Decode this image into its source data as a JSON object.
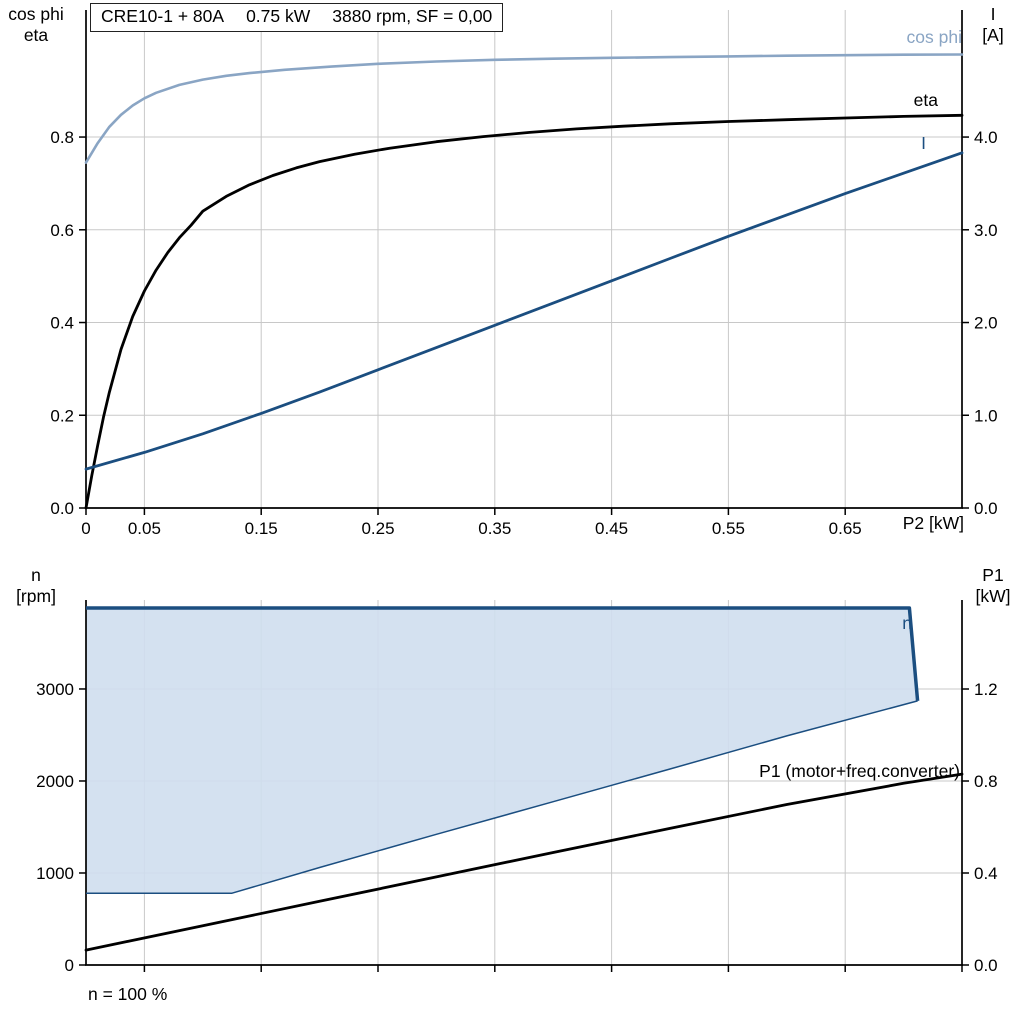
{
  "colors": {
    "light_blue": "#8aa5c4",
    "dark_blue": "#1b4e80",
    "black": "#000000",
    "area_fill": "#cfdeee",
    "grid": "#c8c8c8",
    "axis": "#000000"
  },
  "chart_data": [
    {
      "type": "line",
      "title": "CRE10-1 + 80A 0.75 kW 3880 rpm, SF = 0,00",
      "title_parts": [
        "CRE10-1 + 80A",
        "0.75 kW",
        "3880 rpm, SF = 0,00"
      ],
      "xlabel": "P2 [kW]",
      "xlim": [
        0,
        0.75
      ],
      "x_ticks": {
        "values": [
          0,
          0.05,
          0.15,
          0.25,
          0.35,
          0.45,
          0.55,
          0.65
        ],
        "labels": [
          "0",
          "0.05",
          "0.15",
          "0.25",
          "0.35",
          "0.45",
          "0.55",
          "0.65"
        ]
      },
      "x_gridlines": [
        0.05,
        0.15,
        0.25,
        0.35,
        0.45,
        0.55,
        0.65,
        0.75
      ],
      "left_axis": {
        "title_lines": [
          "cos phi",
          "eta"
        ],
        "range": [
          0,
          1.074
        ],
        "ticks": [
          0,
          0.2,
          0.4,
          0.6,
          0.8
        ],
        "tick_labels": [
          "0.0",
          "0.2",
          "0.4",
          "0.6",
          "0.8"
        ]
      },
      "right_axis": {
        "title_lines": [
          "I",
          "[A]"
        ],
        "range": [
          0,
          5.37
        ],
        "ticks": [
          0,
          1,
          2,
          3,
          4
        ],
        "tick_labels": [
          "0.0",
          "1.0",
          "2.0",
          "3.0",
          "4.0"
        ]
      },
      "series": [
        {
          "name": "cos phi",
          "axis": "left",
          "color_key": "light_blue",
          "width": 2.6,
          "points": [
            [
              0,
              0.745
            ],
            [
              0.01,
              0.787
            ],
            [
              0.02,
              0.822
            ],
            [
              0.03,
              0.848
            ],
            [
              0.04,
              0.868
            ],
            [
              0.05,
              0.8835
            ],
            [
              0.06,
              0.8955
            ],
            [
              0.08,
              0.9125
            ],
            [
              0.1,
              0.924
            ],
            [
              0.12,
              0.932
            ],
            [
              0.14,
              0.938
            ],
            [
              0.17,
              0.945
            ],
            [
              0.21,
              0.952
            ],
            [
              0.25,
              0.958
            ],
            [
              0.3,
              0.963
            ],
            [
              0.35,
              0.9665
            ],
            [
              0.4,
              0.969
            ],
            [
              0.45,
              0.971
            ],
            [
              0.5,
              0.9725
            ],
            [
              0.55,
              0.974
            ],
            [
              0.6,
              0.9755
            ],
            [
              0.65,
              0.9765
            ],
            [
              0.7,
              0.9775
            ],
            [
              0.75,
              0.978
            ]
          ]
        },
        {
          "name": "eta",
          "axis": "left",
          "color_key": "black",
          "width": 2.8,
          "points": [
            [
              0,
              0
            ],
            [
              0.005,
              0.07
            ],
            [
              0.01,
              0.135
            ],
            [
              0.015,
              0.196
            ],
            [
              0.02,
              0.25
            ],
            [
              0.03,
              0.342
            ],
            [
              0.04,
              0.413
            ],
            [
              0.05,
              0.468
            ],
            [
              0.06,
              0.513
            ],
            [
              0.07,
              0.551
            ],
            [
              0.08,
              0.583
            ],
            [
              0.09,
              0.61
            ],
            [
              0.1,
              0.64
            ],
            [
              0.12,
              0.672
            ],
            [
              0.14,
              0.697
            ],
            [
              0.16,
              0.717
            ],
            [
              0.18,
              0.7335
            ],
            [
              0.2,
              0.747
            ],
            [
              0.23,
              0.763
            ],
            [
              0.26,
              0.776
            ],
            [
              0.3,
              0.79
            ],
            [
              0.34,
              0.801
            ],
            [
              0.38,
              0.81
            ],
            [
              0.42,
              0.8175
            ],
            [
              0.46,
              0.8235
            ],
            [
              0.5,
              0.8285
            ],
            [
              0.55,
              0.8335
            ],
            [
              0.6,
              0.8375
            ],
            [
              0.65,
              0.841
            ],
            [
              0.7,
              0.8445
            ],
            [
              0.75,
              0.847
            ]
          ]
        },
        {
          "name": "I",
          "axis": "right",
          "color_key": "dark_blue",
          "width": 2.8,
          "points": [
            [
              0,
              0.42
            ],
            [
              0.05,
              0.6
            ],
            [
              0.1,
              0.8
            ],
            [
              0.15,
              1.02
            ],
            [
              0.2,
              1.25
            ],
            [
              0.25,
              1.49
            ],
            [
              0.3,
              1.73
            ],
            [
              0.35,
              1.97
            ],
            [
              0.4,
              2.21
            ],
            [
              0.45,
              2.45
            ],
            [
              0.5,
              2.69
            ],
            [
              0.55,
              2.93
            ],
            [
              0.6,
              3.16
            ],
            [
              0.65,
              3.39
            ],
            [
              0.7,
              3.61
            ],
            [
              0.75,
              3.83
            ]
          ]
        }
      ]
    },
    {
      "type": "line",
      "footnote": "n = 100 %",
      "xlim": [
        0,
        0.75
      ],
      "x_ticks": {
        "values": [
          0.05,
          0.15,
          0.25,
          0.35,
          0.45,
          0.55,
          0.65,
          0.75
        ],
        "labels": []
      },
      "x_gridlines": [
        0.05,
        0.15,
        0.25,
        0.35,
        0.45,
        0.55,
        0.65,
        0.75
      ],
      "left_axis": {
        "title_lines": [
          "n",
          "[rpm]"
        ],
        "range": [
          0,
          3967
        ],
        "ticks": [
          0,
          1000,
          2000,
          3000
        ],
        "tick_labels": [
          "0",
          "1000",
          "2000",
          "3000"
        ]
      },
      "right_axis": {
        "title_lines": [
          "P1",
          "[kW]"
        ],
        "range": [
          0,
          1.587
        ],
        "ticks": [
          0,
          0.4,
          0.8,
          1.2
        ],
        "tick_labels": [
          "0.0",
          "0.4",
          "0.8",
          "1.2"
        ]
      },
      "series": [
        {
          "name": "n",
          "type": "area",
          "axis": "left",
          "color_key": "dark_blue",
          "fill_key": "area_fill",
          "upper": [
            [
              0,
              3880
            ],
            [
              0.705,
              3880
            ],
            [
              0.712,
              2870
            ]
          ],
          "lower": [
            [
              0,
              780
            ],
            [
              0.125,
              780
            ],
            [
              0.2,
              1060
            ],
            [
              0.3,
              1420
            ],
            [
              0.4,
              1775
            ],
            [
              0.5,
              2130
            ],
            [
              0.6,
              2490
            ],
            [
              0.712,
              2870
            ]
          ]
        },
        {
          "name": "P1 (motor+freq.converter)",
          "axis": "right",
          "color_key": "black",
          "width": 2.8,
          "points": [
            [
              0,
              0.065
            ],
            [
              0.1,
              0.171
            ],
            [
              0.2,
              0.277
            ],
            [
              0.3,
              0.383
            ],
            [
              0.4,
              0.489
            ],
            [
              0.5,
              0.594
            ],
            [
              0.6,
              0.698
            ],
            [
              0.7,
              0.79
            ],
            [
              0.75,
              0.83
            ]
          ]
        }
      ]
    }
  ]
}
